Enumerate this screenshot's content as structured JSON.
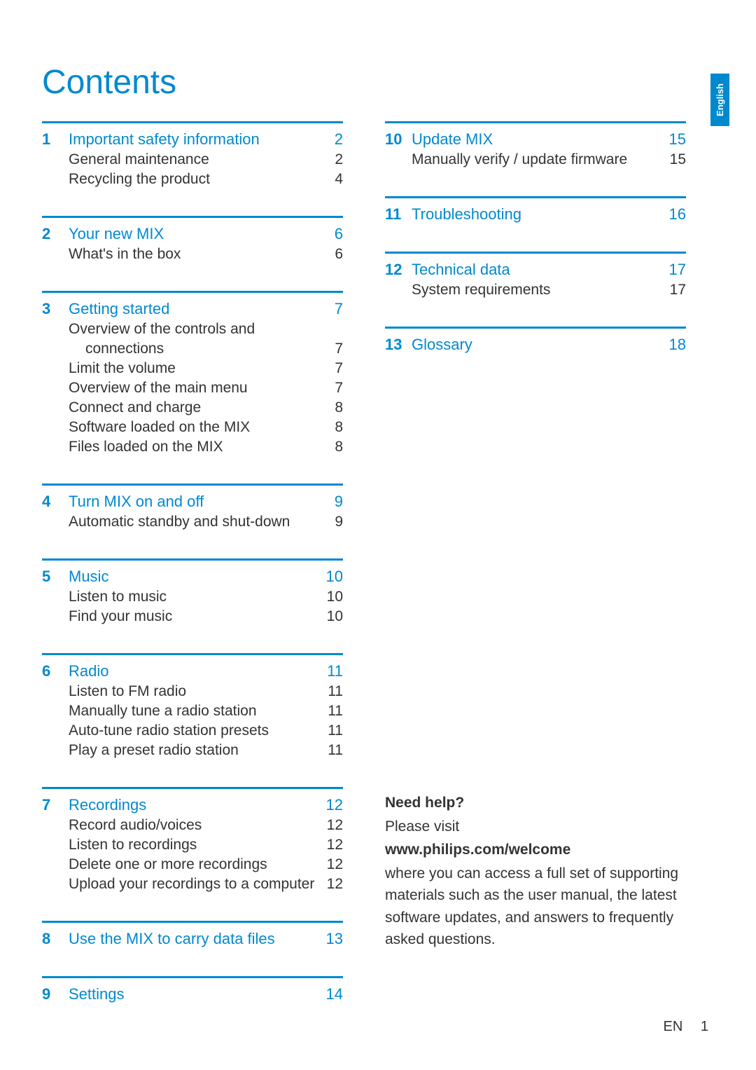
{
  "page_title": "Contents",
  "language_tab": "English",
  "footer": {
    "lang": "EN",
    "page_number": "1"
  },
  "toc_left": [
    {
      "num": "1",
      "heading": "Important safety information",
      "page": "2",
      "subs": [
        {
          "text": "General maintenance",
          "page": "2"
        },
        {
          "text": "Recycling the product",
          "page": "4"
        }
      ]
    },
    {
      "num": "2",
      "heading": "Your new MIX",
      "page": "6",
      "subs": [
        {
          "text": "What's in the box",
          "page": "6"
        }
      ]
    },
    {
      "num": "3",
      "heading": "Getting started",
      "page": "7",
      "subs": [
        {
          "text": "Overview of the controls and",
          "page": ""
        },
        {
          "text": "connections",
          "page": "7",
          "indented": true
        },
        {
          "text": "Limit the volume",
          "page": "7"
        },
        {
          "text": "Overview of the main menu",
          "page": "7"
        },
        {
          "text": "Connect and charge",
          "page": "8"
        },
        {
          "text": "Software loaded on the MIX",
          "page": "8"
        },
        {
          "text": "Files loaded on the MIX",
          "page": "8"
        }
      ]
    },
    {
      "num": "4",
      "heading": "Turn MIX on and off",
      "page": "9",
      "subs": [
        {
          "text": "Automatic standby and shut-down",
          "page": "9"
        }
      ]
    },
    {
      "num": "5",
      "heading": "Music",
      "page": "10",
      "subs": [
        {
          "text": "Listen to music",
          "page": "10"
        },
        {
          "text": "Find your music",
          "page": "10"
        }
      ]
    },
    {
      "num": "6",
      "heading": "Radio",
      "page": "11",
      "subs": [
        {
          "text": "Listen to FM radio",
          "page": "11"
        },
        {
          "text": "Manually tune a radio station",
          "page": "11"
        },
        {
          "text": "Auto-tune radio station presets",
          "page": "11"
        },
        {
          "text": "Play a preset radio station",
          "page": "11"
        }
      ]
    },
    {
      "num": "7",
      "heading": "Recordings",
      "page": "12",
      "subs": [
        {
          "text": "Record audio/voices",
          "page": "12"
        },
        {
          "text": "Listen to recordings",
          "page": "12"
        },
        {
          "text": "Delete one or more recordings",
          "page": "12"
        },
        {
          "text": "Upload your recordings to a computer",
          "page": "12"
        }
      ]
    },
    {
      "num": "8",
      "heading": "Use the MIX to carry data files",
      "page": "13",
      "subs": []
    },
    {
      "num": "9",
      "heading": "Settings",
      "page": "14",
      "subs": []
    }
  ],
  "toc_right": [
    {
      "num": "10",
      "heading": "Update MIX",
      "page": "15",
      "subs": [
        {
          "text": "Manually verify / update firmware",
          "page": "15"
        }
      ]
    },
    {
      "num": "11",
      "heading": "Troubleshooting",
      "page": "16",
      "subs": []
    },
    {
      "num": "12",
      "heading": "Technical data",
      "page": "17",
      "subs": [
        {
          "text": "System requirements",
          "page": "17"
        }
      ]
    },
    {
      "num": "13",
      "heading": "Glossary",
      "page": "18",
      "subs": []
    }
  ],
  "help": {
    "title": "Need help?",
    "intro": "Please visit",
    "url": "www.philips.com/welcome",
    "body": "where you can access a full set of supporting materials such as the user manual, the latest software updates, and answers to frequently asked questions."
  },
  "colors": {
    "accent": "#0089cf",
    "text": "#333333",
    "background": "#ffffff"
  }
}
